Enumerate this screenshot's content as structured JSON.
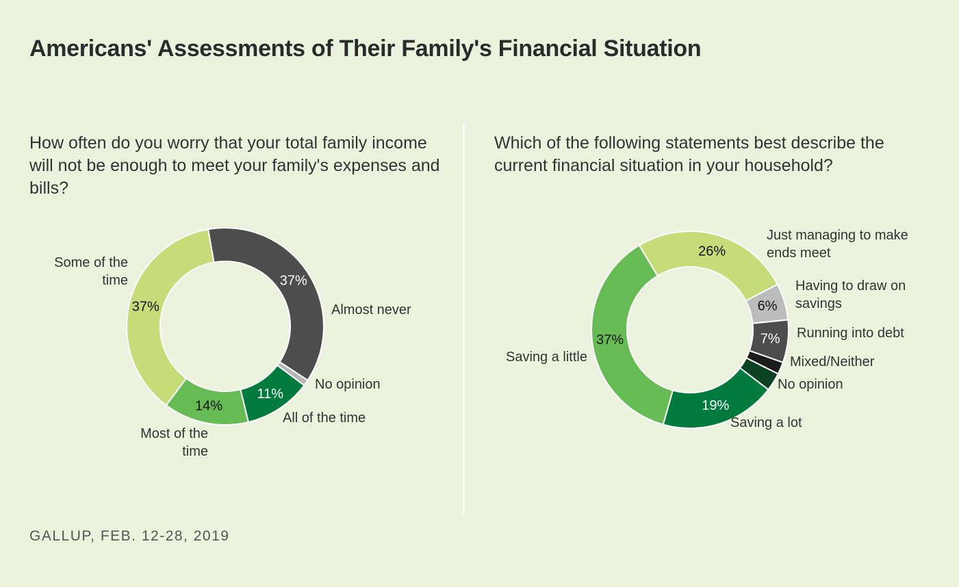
{
  "title": "Americans' Assessments of Their Family's Financial Situation",
  "source": "GALLUP, FEB. 12-28, 2019",
  "chart_data": [
    {
      "type": "pie",
      "subtitle": "How often do you worry that your total family income will not be enough to meet your family's expenses and bills?",
      "categories": [
        "Almost never",
        "No opinion",
        "All of the time",
        "Most of the time",
        "Some of the time"
      ],
      "values": [
        37,
        1,
        11,
        14,
        37
      ],
      "value_labels": [
        "37%",
        null,
        "11%",
        "14%",
        "37%"
      ],
      "colors": [
        "#4d4d4d",
        "#b5b5b5",
        "#007a3d",
        "#66bb55",
        "#c5dc78"
      ]
    },
    {
      "type": "pie",
      "subtitle": "Which of the following statements best describe the current financial situation in your household?",
      "categories": [
        "Just managing to make ends meet",
        "Having to draw on savings",
        "Running into debt",
        "Mixed/Neither",
        "No opinion",
        "Saving a lot",
        "Saving a little"
      ],
      "values": [
        26,
        6,
        7,
        2,
        3,
        19,
        37
      ],
      "value_labels": [
        "26%",
        "6%",
        "7%",
        null,
        null,
        "19%",
        "37%"
      ],
      "colors": [
        "#c5dc78",
        "#bcbcbc",
        "#4d4d4d",
        "#1c1c1c",
        "#0b4222",
        "#007a3d",
        "#66bb55"
      ]
    }
  ]
}
